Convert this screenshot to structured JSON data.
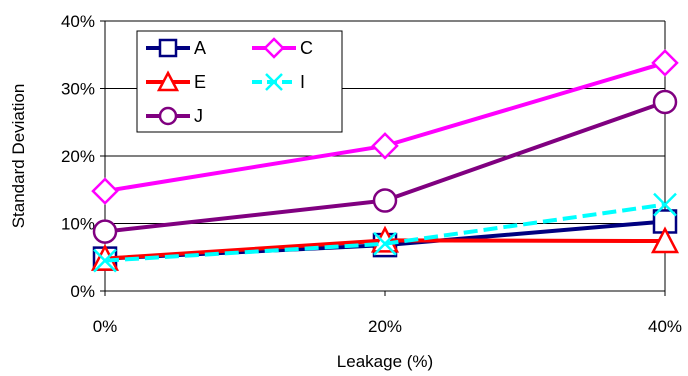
{
  "chart_data": {
    "type": "line",
    "title": "",
    "xlabel": "Leakage (%)",
    "ylabel": "Standard Deviation",
    "x": [
      0,
      20,
      40
    ],
    "x_tick_labels": [
      "0%",
      "20%",
      "40%"
    ],
    "ylim": [
      0,
      40
    ],
    "y_tick_labels": [
      "0%",
      "10%",
      "20%",
      "30%",
      "40%"
    ],
    "y_ticks": [
      0,
      10,
      20,
      30,
      40
    ],
    "grid": "horizontal",
    "legend_position": "top-left",
    "series": [
      {
        "name": "A",
        "values": [
          4.8,
          6.8,
          10.3
        ],
        "color": "#000080",
        "marker": "square"
      },
      {
        "name": "C",
        "values": [
          14.8,
          21.5,
          33.8
        ],
        "color": "#ff00ff",
        "marker": "diamond"
      },
      {
        "name": "E",
        "values": [
          4.8,
          7.5,
          7.4
        ],
        "color": "#ff0000",
        "marker": "triangle"
      },
      {
        "name": "I",
        "values": [
          4.5,
          7.0,
          12.8
        ],
        "color": "#00ffff",
        "marker": "x",
        "dash": true
      },
      {
        "name": "J",
        "values": [
          8.8,
          13.4,
          28.0
        ],
        "color": "#800080",
        "marker": "circle"
      }
    ],
    "legend_order": [
      "A",
      "C",
      "E",
      "I",
      "J"
    ],
    "draw_order": [
      "C",
      "J",
      "A",
      "E",
      "I"
    ]
  }
}
